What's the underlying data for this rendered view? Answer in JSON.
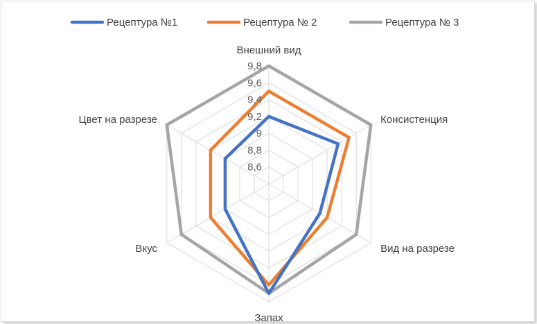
{
  "chart_data": {
    "type": "radar",
    "title": "",
    "axes": [
      "Внешний вид",
      "Консистенция",
      "Вид на разрезе",
      "Запах",
      "Вкус",
      "Цвет на разрезе"
    ],
    "r_ticks": [
      "8,6",
      "8,8",
      "9",
      "9,2",
      "9,4",
      "9,6",
      "9,8"
    ],
    "r_tick_values": [
      8.6,
      8.8,
      9.0,
      9.2,
      9.4,
      9.6,
      9.8
    ],
    "rlim": [
      8.4,
      9.8
    ],
    "grid": true,
    "legend_position": "top",
    "series": [
      {
        "name": "Рецептура №1",
        "color": "#4472c4",
        "values": [
          9.2,
          9.35,
          9.1,
          9.7,
          9.0,
          9.0
        ]
      },
      {
        "name": "Рецептура № 2",
        "color": "#ed7d31",
        "values": [
          9.5,
          9.5,
          9.2,
          9.6,
          9.2,
          9.2
        ]
      },
      {
        "name": "Рецептура № 3",
        "color": "#a5a5a5",
        "values": [
          9.8,
          9.8,
          9.6,
          9.7,
          9.6,
          9.8
        ]
      }
    ]
  }
}
